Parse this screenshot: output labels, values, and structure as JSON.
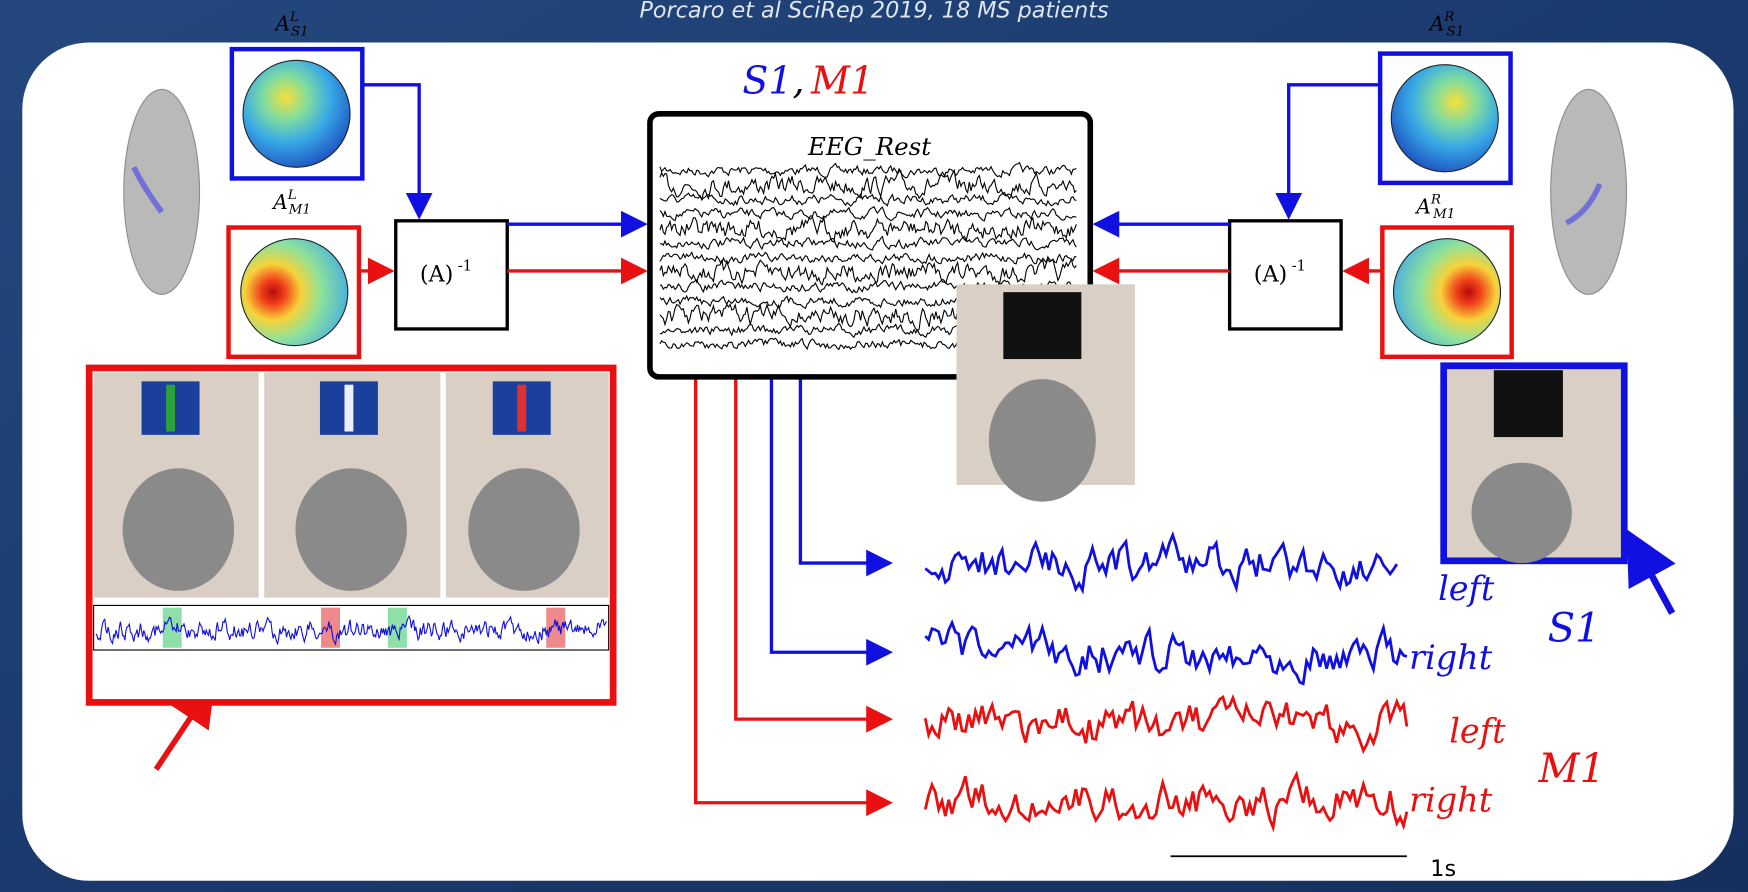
{
  "header": {
    "caption": "Porcaro et al SciRep 2019, 18 MS patients"
  },
  "title": {
    "s1": "S1",
    "separator": ",",
    "m1": "M1"
  },
  "topomaps": [
    {
      "base": "A",
      "sup": "L",
      "sub": "S1"
    },
    {
      "base": "A",
      "sup": "L",
      "sub": "M1"
    },
    {
      "base": "A",
      "sup": "R",
      "sub": "S1"
    },
    {
      "base": "A",
      "sup": "R",
      "sub": "M1"
    }
  ],
  "inverse_boxes": [
    {
      "label": "(A)",
      "exponent": "-1"
    },
    {
      "label": "(A)",
      "exponent": "-1"
    }
  ],
  "eeg_box": {
    "label": "EEG_Rest"
  },
  "outputs": [
    {
      "label": "left"
    },
    {
      "label": "right"
    },
    {
      "label": "left"
    },
    {
      "label": "right"
    }
  ],
  "groups": {
    "s1": "S1",
    "m1": "M1"
  },
  "scale_bar": {
    "label": "1s"
  }
}
